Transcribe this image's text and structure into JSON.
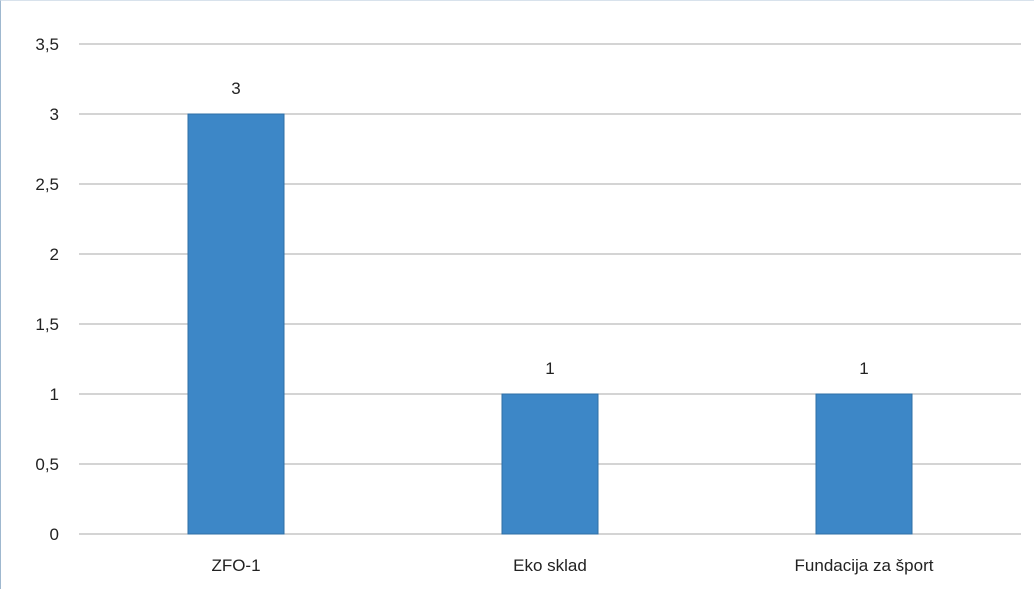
{
  "chart_data": {
    "type": "bar",
    "title": "",
    "xlabel": "",
    "ylabel": "",
    "categories": [
      "ZFO-1",
      "Eko sklad",
      "Fundacija za šport"
    ],
    "values": [
      3,
      1,
      1
    ],
    "data_labels": [
      "3",
      "1",
      "1"
    ],
    "ylim": [
      0,
      3.5
    ],
    "yticks": [
      0,
      0.5,
      1,
      1.5,
      2,
      2.5,
      3,
      3.5
    ],
    "ytick_labels": [
      "0",
      "0,5",
      "1",
      "1,5",
      "2",
      "2,5",
      "3",
      "3,5"
    ],
    "grid": true,
    "legend": "none",
    "bar_color": "#3d87c7",
    "bar_edge_color": "#2f6fa6"
  }
}
